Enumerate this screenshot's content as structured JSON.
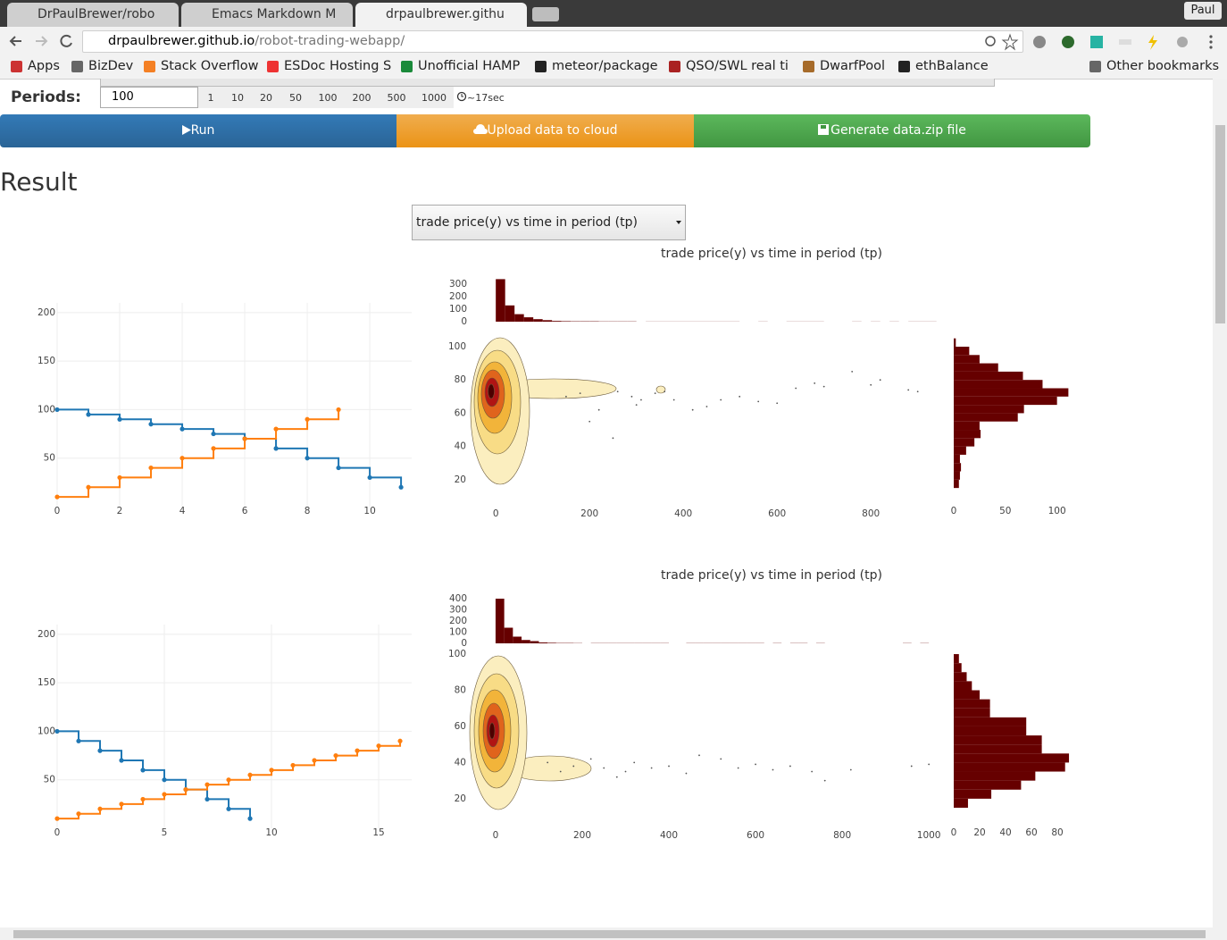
{
  "browser": {
    "tabs": [
      "DrPaulBrewer/robo",
      "Emacs Markdown M",
      "drpaulbrewer.githu"
    ],
    "profile": "Paul",
    "url": {
      "host": "drpaulbrewer.github.io",
      "path": "/robot-trading-webapp/"
    },
    "bookmarks": [
      "Apps",
      "BizDev",
      "Stack Overflow",
      "ESDoc Hosting S",
      "Unofficial HAMP",
      "meteor/package",
      "QSO/SWL real ti",
      "DwarfPool",
      "ethBalance"
    ],
    "other_bookmarks": "Other bookmarks"
  },
  "controls": {
    "periods_label": "Periods:",
    "periods_input": "100",
    "period_options": [
      "1",
      "10",
      "20",
      "50",
      "100",
      "200",
      "500",
      "1000"
    ],
    "time_estimate": "~17sec",
    "buttons": [
      "Run",
      "Upload data to cloud",
      "Generate data.zip file"
    ]
  },
  "result": {
    "heading": "Result",
    "plot_select": "trade price(y) vs time in period (tp)"
  },
  "chart_data": [
    {
      "type": "line",
      "step": "hv",
      "grid": true,
      "xlim": [
        0,
        11.34
      ],
      "ylim": [
        0,
        210
      ],
      "xticks": [
        0,
        2,
        4,
        6,
        8,
        10
      ],
      "yticks": [
        50,
        100,
        150,
        200
      ],
      "series": [
        {
          "color": "#1f77b4",
          "x": [
            0,
            1,
            2,
            3,
            4,
            5,
            6,
            7,
            8,
            9,
            10,
            11
          ],
          "values": [
            100,
            95,
            90,
            85,
            80,
            75,
            70,
            60,
            50,
            40,
            30,
            20
          ]
        },
        {
          "color": "#ff7f0e",
          "x": [
            0,
            1,
            2,
            3,
            4,
            5,
            6,
            7,
            8,
            9
          ],
          "values": [
            10,
            20,
            30,
            40,
            50,
            60,
            70,
            80,
            90,
            100
          ]
        }
      ]
    },
    {
      "type": "scatter",
      "title": "trade price(y) vs time in period (tp)",
      "color": "#555555",
      "xlim": [
        -67,
        933
      ],
      "ylim": [
        14,
        105
      ],
      "xticks": [
        0,
        200,
        400,
        600,
        800
      ],
      "yticks": [
        20,
        40,
        60,
        80,
        100
      ],
      "x": [
        150,
        180,
        200,
        220,
        250,
        260,
        290,
        300,
        310,
        340,
        360,
        380,
        420,
        450,
        480,
        520,
        560,
        600,
        640,
        680,
        700,
        760,
        800,
        820,
        880,
        900
      ],
      "values": [
        70,
        72,
        55,
        62,
        45,
        73,
        70,
        65,
        68,
        72,
        73,
        68,
        62,
        64,
        68,
        70,
        67,
        66,
        75,
        78,
        76,
        85,
        77,
        80,
        74,
        73
      ]
    },
    {
      "type": "histogram",
      "orientation": "vertical",
      "color": "#660000",
      "xlim": [
        -67,
        933
      ],
      "ylim": [
        0,
        350
      ],
      "yticks": [
        0,
        100,
        200,
        300
      ],
      "bins": [
        0,
        20,
        40,
        60,
        80,
        100,
        120,
        140,
        160,
        180,
        200,
        220,
        240,
        260,
        280,
        300,
        320,
        340,
        360,
        380,
        400,
        420,
        440,
        460,
        480,
        500,
        520,
        540,
        560,
        580,
        600,
        620,
        640,
        660,
        680,
        700,
        720,
        740,
        760,
        780,
        800,
        820,
        840,
        860,
        880,
        900,
        920,
        940
      ],
      "values": [
        340,
        130,
        60,
        35,
        20,
        12,
        6,
        4,
        3,
        3,
        3,
        2,
        2,
        2,
        2,
        0,
        1,
        1,
        1,
        1,
        1,
        1,
        1,
        1,
        1,
        1,
        0,
        0,
        1,
        0,
        0,
        1,
        1,
        1,
        1,
        0,
        0,
        0,
        1,
        0,
        1,
        0,
        1,
        0,
        1,
        1,
        1
      ]
    },
    {
      "type": "histogram",
      "orientation": "horizontal",
      "color": "#660000",
      "xlim": [
        0,
        115
      ],
      "ylim": [
        14,
        105
      ],
      "xticks": [
        0,
        50,
        100
      ],
      "bins": [
        15,
        20,
        25,
        30,
        35,
        40,
        45,
        50,
        55,
        60,
        65,
        70,
        75,
        80,
        85,
        90,
        95,
        100,
        105
      ],
      "values": [
        5,
        6,
        7,
        6,
        12,
        20,
        26,
        25,
        62,
        68,
        100,
        111,
        86,
        67,
        43,
        25,
        15,
        2
      ]
    },
    {
      "type": "line",
      "step": "hv",
      "grid": true,
      "xlim": [
        0,
        16.54
      ],
      "ylim": [
        0,
        210
      ],
      "xticks": [
        0,
        5,
        10,
        15
      ],
      "yticks": [
        50,
        100,
        150,
        200
      ],
      "series": [
        {
          "color": "#1f77b4",
          "x": [
            0,
            1,
            2,
            3,
            4,
            5,
            6,
            7,
            8,
            9
          ],
          "values": [
            100,
            90,
            80,
            70,
            60,
            50,
            40,
            30,
            20,
            10
          ]
        },
        {
          "color": "#ff7f0e",
          "x": [
            0,
            1,
            2,
            3,
            4,
            5,
            6,
            7,
            8,
            9,
            10,
            11,
            12,
            13,
            14,
            15,
            16
          ],
          "values": [
            10,
            15,
            20,
            25,
            30,
            35,
            40,
            45,
            50,
            55,
            60,
            65,
            70,
            75,
            80,
            85,
            90
          ]
        }
      ]
    },
    {
      "type": "scatter",
      "title": "trade price(y) vs time in period (tp)",
      "color": "#555555",
      "xlim": [
        -72,
        1010
      ],
      "ylim": [
        14,
        102
      ],
      "xticks": [
        0,
        200,
        400,
        600,
        800,
        1000
      ],
      "yticks": [
        20,
        40,
        60,
        80,
        100
      ],
      "x": [
        120,
        150,
        180,
        220,
        250,
        280,
        300,
        320,
        360,
        400,
        440,
        470,
        520,
        560,
        600,
        640,
        680,
        730,
        760,
        820,
        960,
        1000
      ],
      "values": [
        40,
        35,
        38,
        42,
        37,
        32,
        35,
        40,
        37,
        38,
        34,
        44,
        42,
        37,
        39,
        36,
        38,
        35,
        30,
        36,
        38,
        39
      ]
    },
    {
      "type": "histogram",
      "orientation": "vertical",
      "color": "#660000",
      "xlim": [
        -72,
        1010
      ],
      "ylim": [
        0,
        400
      ],
      "yticks": [
        0,
        100,
        200,
        300,
        400
      ],
      "bins": [
        0,
        20,
        40,
        60,
        80,
        100,
        120,
        140,
        160,
        180,
        200,
        220,
        240,
        260,
        280,
        300,
        320,
        340,
        360,
        380,
        400,
        420,
        440,
        460,
        480,
        500,
        520,
        540,
        560,
        580,
        600,
        620,
        640,
        660,
        680,
        700,
        720,
        740,
        760,
        780,
        800,
        820,
        840,
        860,
        880,
        900,
        920,
        940,
        960,
        980,
        1000
      ],
      "values": [
        400,
        140,
        60,
        30,
        20,
        8,
        5,
        3,
        3,
        2,
        0,
        2,
        2,
        2,
        2,
        2,
        2,
        2,
        2,
        2,
        0,
        0,
        2,
        2,
        2,
        2,
        2,
        2,
        2,
        2,
        2,
        0,
        2,
        0,
        2,
        2,
        0,
        2,
        0,
        0,
        0,
        0,
        0,
        0,
        0,
        0,
        0,
        2,
        0,
        2
      ]
    },
    {
      "type": "histogram",
      "orientation": "horizontal",
      "color": "#660000",
      "xlim": [
        0,
        90
      ],
      "ylim": [
        14,
        102
      ],
      "xticks": [
        0,
        20,
        40,
        60,
        80
      ],
      "bins": [
        15,
        20,
        25,
        30,
        35,
        40,
        45,
        50,
        55,
        60,
        65,
        70,
        75,
        80,
        85,
        90,
        95,
        100
      ],
      "values": [
        11,
        29,
        52,
        63,
        86,
        89,
        68,
        68,
        56,
        56,
        28,
        28,
        20,
        14,
        10,
        6,
        4
      ]
    }
  ]
}
